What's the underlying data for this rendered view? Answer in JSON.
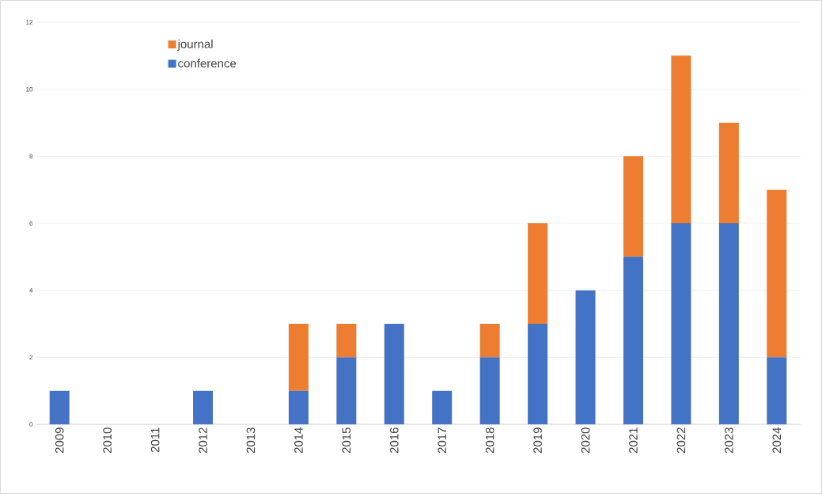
{
  "chart_data": {
    "type": "bar",
    "stacked": true,
    "categories": [
      "2009",
      "2010",
      "2011",
      "2012",
      "2013",
      "2014",
      "2015",
      "2016",
      "2017",
      "2018",
      "2019",
      "2020",
      "2021",
      "2022",
      "2023",
      "2024"
    ],
    "series": [
      {
        "name": "conference",
        "color": "#4472c4",
        "values": [
          1,
          0,
          0,
          1,
          0,
          1,
          2,
          3,
          1,
          2,
          3,
          4,
          5,
          6,
          6,
          2
        ]
      },
      {
        "name": "journal",
        "color": "#ed7d31",
        "values": [
          0,
          0,
          0,
          0,
          0,
          2,
          1,
          0,
          0,
          1,
          3,
          0,
          3,
          5,
          3,
          5
        ]
      }
    ],
    "ylim": [
      0,
      12
    ],
    "yticks": [
      0,
      2,
      4,
      6,
      8,
      10,
      12
    ],
    "grid": "y",
    "legend": "top left"
  }
}
